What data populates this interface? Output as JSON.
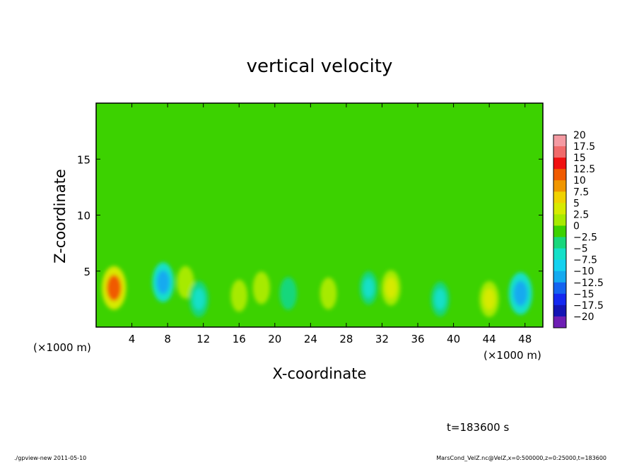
{
  "chart_data": {
    "type": "heatmap",
    "title": "vertical velocity",
    "xlabel": "X-coordinate",
    "ylabel": "Z-coordinate",
    "x_unit_label": "(×1000 m)",
    "y_unit_label": "(×1000 m)",
    "xlim": [
      0,
      50
    ],
    "ylim": [
      0,
      20
    ],
    "x_ticks": [
      4,
      8,
      12,
      16,
      20,
      24,
      28,
      32,
      36,
      40,
      44,
      48
    ],
    "y_ticks": [
      5,
      10,
      15
    ],
    "colorbar_levels": [
      20,
      17.5,
      15,
      12.5,
      10,
      7.5,
      5,
      2.5,
      0,
      -2.5,
      -5,
      -7.5,
      -10,
      -12.5,
      -15,
      -17.5,
      -20
    ],
    "colorbar_labels": [
      "20",
      "17.5",
      "15",
      "12.5",
      "10",
      "7.5",
      "5",
      "2.5",
      "0",
      "−2.5",
      "−5",
      "−7.5",
      "−10",
      "−12.5",
      "−15",
      "−17.5",
      "−20"
    ],
    "colorbar_colors": [
      "#f49aa2",
      "#f06a6a",
      "#f01010",
      "#f05a00",
      "#f09600",
      "#f0d200",
      "#d7ea00",
      "#a7ea00",
      "#3cd200",
      "#18d77c",
      "#14e0c8",
      "#14d2f0",
      "#14aaf0",
      "#1464f0",
      "#1428f0",
      "#1414b4",
      "#6e1eb4"
    ],
    "background_level": 0,
    "features": [
      {
        "x": 2,
        "z": 3.5,
        "value": 12
      },
      {
        "x": 7.5,
        "z": 4,
        "value": -9
      },
      {
        "x": 10,
        "z": 4,
        "value": 3.5
      },
      {
        "x": 11.5,
        "z": 2.5,
        "value": -6
      },
      {
        "x": 16,
        "z": 2.8,
        "value": 3
      },
      {
        "x": 18.5,
        "z": 3.5,
        "value": 3.5
      },
      {
        "x": 21.5,
        "z": 3,
        "value": -3.5
      },
      {
        "x": 26,
        "z": 3,
        "value": 3
      },
      {
        "x": 30.5,
        "z": 3.5,
        "value": -4
      },
      {
        "x": 33,
        "z": 3.5,
        "value": 5.5
      },
      {
        "x": 38.5,
        "z": 2.5,
        "value": -5
      },
      {
        "x": 44,
        "z": 2.5,
        "value": 6
      },
      {
        "x": 47.5,
        "z": 3,
        "value": -11
      }
    ]
  },
  "time_label": "t=183600 s",
  "footer": {
    "left": "./gpview-new   2011-05-10",
    "right": "MarsCond_VelZ.nc@VelZ,x=0:500000,z=0:25000,t=183600"
  }
}
